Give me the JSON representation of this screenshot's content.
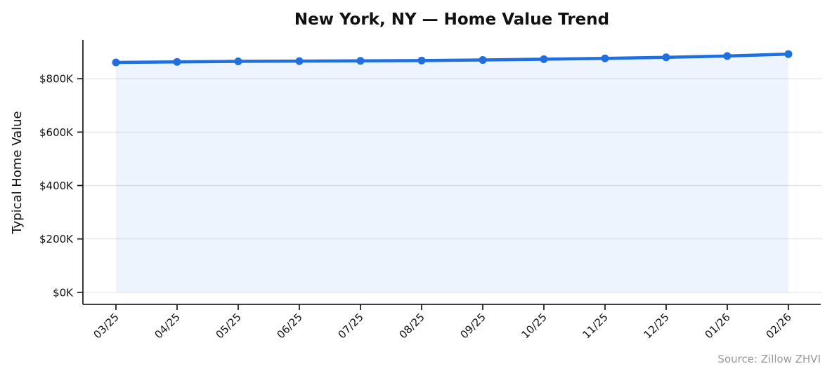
{
  "colors": {
    "line": "#1f6fe0",
    "marker": "#1f6fe0",
    "area_fill": "rgba(31,111,224,0.08)",
    "grid": "#e7e7e7",
    "axis": "#222222",
    "tick_label": "#111111",
    "title": "#111111",
    "source": "#999999",
    "background": "#ffffff"
  },
  "chart_data": {
    "type": "line",
    "title": "New York, NY — Home Value Trend",
    "xlabel": "",
    "ylabel": "Typical Home Value",
    "source_note": "Source: Zillow ZHVI",
    "categories": [
      "03/25",
      "04/25",
      "05/25",
      "06/25",
      "07/25",
      "08/25",
      "09/25",
      "10/25",
      "11/25",
      "12/25",
      "01/26",
      "02/26"
    ],
    "series": [
      {
        "name": "Typical Home Value",
        "values": [
          861000,
          863000,
          865000,
          866000,
          867000,
          868000,
          870000,
          873000,
          876000,
          880000,
          885000,
          892000
        ]
      }
    ],
    "ylim": [
      -45000,
      945000
    ],
    "yticks": [
      {
        "value": 0,
        "label": "$0K"
      },
      {
        "value": 200000,
        "label": "$200K"
      },
      {
        "value": 400000,
        "label": "$400K"
      },
      {
        "value": 600000,
        "label": "$600K"
      },
      {
        "value": 800000,
        "label": "$800K"
      }
    ],
    "grid": "horizontal",
    "legend_position": "none",
    "markers": true,
    "area_fill": true,
    "x_tick_rotation": 45
  }
}
